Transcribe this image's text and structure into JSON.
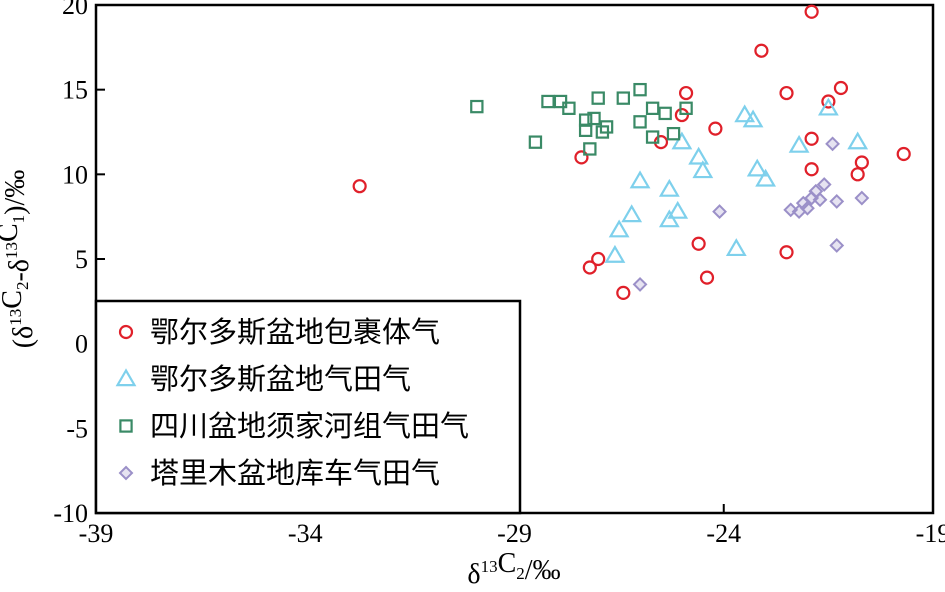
{
  "chart_data": {
    "type": "scatter",
    "xlabel": "δ13C2/‰",
    "ylabel": "(δ13C2-δ13C1)/‰",
    "xlim": [
      -39,
      -19
    ],
    "ylim": [
      -10,
      20
    ],
    "x_ticks": [
      "-39",
      "-34",
      "-29",
      "-24",
      "-19"
    ],
    "y_ticks": [
      "-10",
      "-5",
      "0",
      "5",
      "10",
      "15",
      "20"
    ],
    "grid": false,
    "legend_position": "bottom-left",
    "series": [
      {
        "name": "鄂尔多斯盆地包裹体气",
        "marker": "circle",
        "color": "#e0202a",
        "points": [
          [
            -32.7,
            9.3
          ],
          [
            -27.4,
            11.0
          ],
          [
            -27.2,
            4.5
          ],
          [
            -27.0,
            5.0
          ],
          [
            -26.4,
            3.0
          ],
          [
            -25.5,
            11.9
          ],
          [
            -25.0,
            13.5
          ],
          [
            -24.9,
            14.8
          ],
          [
            -24.6,
            5.9
          ],
          [
            -24.4,
            3.9
          ],
          [
            -24.2,
            12.7
          ],
          [
            -23.1,
            17.3
          ],
          [
            -22.5,
            14.8
          ],
          [
            -22.5,
            5.4
          ],
          [
            -21.9,
            19.6
          ],
          [
            -21.9,
            12.1
          ],
          [
            -21.9,
            10.3
          ],
          [
            -21.5,
            14.3
          ],
          [
            -21.2,
            15.1
          ],
          [
            -20.8,
            10.0
          ],
          [
            -20.7,
            10.7
          ],
          [
            -19.7,
            11.2
          ]
        ]
      },
      {
        "name": "鄂尔多斯盆地气田气",
        "marker": "triangle",
        "color": "#7ed0ec",
        "points": [
          [
            -26.6,
            5.2
          ],
          [
            -26.5,
            6.7
          ],
          [
            -26.2,
            7.6
          ],
          [
            -26.0,
            9.6
          ],
          [
            -25.3,
            9.1
          ],
          [
            -25.3,
            7.3
          ],
          [
            -25.1,
            7.8
          ],
          [
            -25.0,
            11.9
          ],
          [
            -24.6,
            11.0
          ],
          [
            -24.5,
            10.2
          ],
          [
            -23.7,
            5.6
          ],
          [
            -23.2,
            10.3
          ],
          [
            -23.0,
            9.7
          ],
          [
            -23.5,
            13.5
          ],
          [
            -23.3,
            13.2
          ],
          [
            -22.2,
            11.7
          ],
          [
            -21.5,
            13.9
          ],
          [
            -20.8,
            11.9
          ]
        ]
      },
      {
        "name": "四川盆地须家河组气田气",
        "marker": "square",
        "color": "#3a8a66",
        "points": [
          [
            -29.9,
            14.0
          ],
          [
            -28.5,
            11.9
          ],
          [
            -28.2,
            14.3
          ],
          [
            -27.9,
            14.3
          ],
          [
            -27.7,
            13.9
          ],
          [
            -27.3,
            12.6
          ],
          [
            -27.3,
            13.2
          ],
          [
            -27.2,
            11.5
          ],
          [
            -27.1,
            13.3
          ],
          [
            -26.9,
            12.5
          ],
          [
            -27.0,
            14.5
          ],
          [
            -26.8,
            12.8
          ],
          [
            -26.4,
            14.5
          ],
          [
            -26.0,
            15.0
          ],
          [
            -26.0,
            13.1
          ],
          [
            -25.7,
            13.9
          ],
          [
            -25.7,
            12.2
          ],
          [
            -25.2,
            12.4
          ],
          [
            -25.4,
            13.6
          ],
          [
            -24.9,
            13.9
          ]
        ]
      },
      {
        "name": "塔里木盆地库车气田气",
        "marker": "diamond",
        "color": "#9b90c8",
        "points": [
          [
            -26.0,
            3.5
          ],
          [
            -24.1,
            7.8
          ],
          [
            -22.4,
            7.9
          ],
          [
            -22.2,
            7.8
          ],
          [
            -22.1,
            8.3
          ],
          [
            -22.0,
            8.0
          ],
          [
            -21.9,
            8.6
          ],
          [
            -21.7,
            8.5
          ],
          [
            -21.8,
            9.0
          ],
          [
            -21.6,
            9.4
          ],
          [
            -21.4,
            11.8
          ],
          [
            -21.3,
            8.4
          ],
          [
            -21.3,
            5.8
          ],
          [
            -20.7,
            8.6
          ]
        ]
      }
    ]
  }
}
